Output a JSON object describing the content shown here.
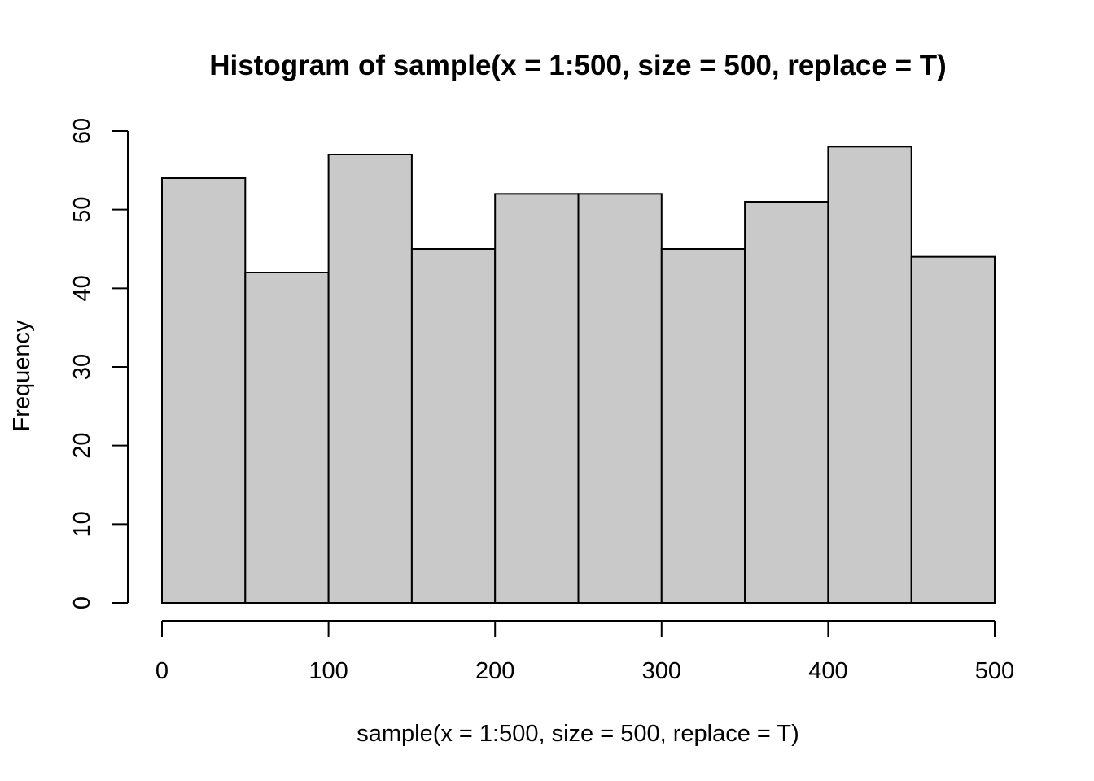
{
  "chart_data": {
    "type": "bar",
    "title": "Histogram of sample(x = 1:500, size = 500, replace = T)",
    "xlabel": "sample(x = 1:500, size = 500, replace = T)",
    "ylabel": "Frequency",
    "bins": [
      {
        "from": 0,
        "to": 50,
        "value": 54
      },
      {
        "from": 50,
        "to": 100,
        "value": 42
      },
      {
        "from": 100,
        "to": 150,
        "value": 57
      },
      {
        "from": 150,
        "to": 200,
        "value": 45
      },
      {
        "from": 200,
        "to": 250,
        "value": 52
      },
      {
        "from": 250,
        "to": 300,
        "value": 52
      },
      {
        "from": 300,
        "to": 350,
        "value": 45
      },
      {
        "from": 350,
        "to": 400,
        "value": 51
      },
      {
        "from": 400,
        "to": 450,
        "value": 58
      },
      {
        "from": 450,
        "to": 500,
        "value": 44
      }
    ],
    "xlim": [
      0,
      500
    ],
    "ylim": [
      0,
      60
    ],
    "x_ticks": [
      "0",
      "100",
      "200",
      "300",
      "400",
      "500"
    ],
    "y_ticks": [
      "0",
      "10",
      "20",
      "30",
      "40",
      "50",
      "60"
    ],
    "bar_color": "#c9c9c9",
    "grid": false,
    "legend": "none"
  }
}
